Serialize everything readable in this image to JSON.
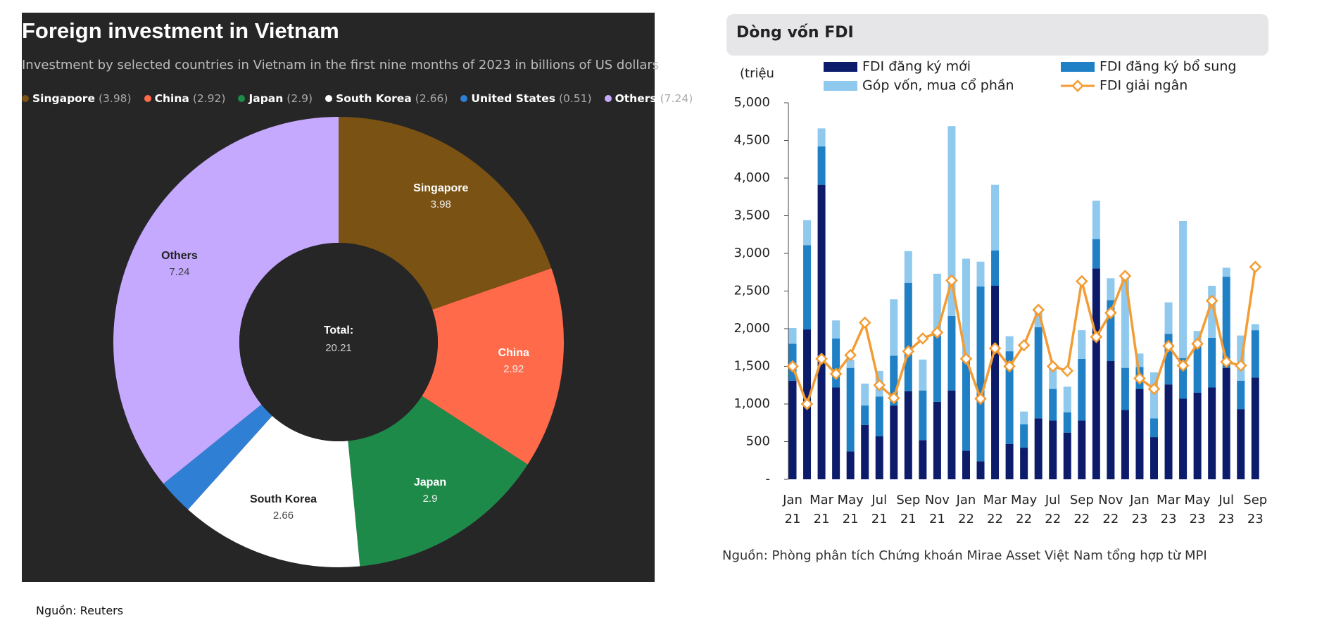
{
  "chart_data": [
    {
      "type": "pie",
      "title": "Foreign investment in Vietnam",
      "subtitle": "Investment by selected countries in Vietnam in the first nine months of 2023 in billions of US dollars",
      "categories": [
        "Singapore",
        "China",
        "Japan",
        "South Korea",
        "United States",
        "Others"
      ],
      "values": [
        3.98,
        2.92,
        2.9,
        2.66,
        0.51,
        7.24
      ],
      "colors": [
        "#7a5213",
        "#ff6b4a",
        "#1e8a4a",
        "#ffffff",
        "#2f7fd4",
        "#c5a9ff"
      ],
      "center_label": "Total:",
      "center_value": 20.21,
      "source": "Nguồn: Reuters"
    },
    {
      "type": "bar",
      "stacked": true,
      "title": "Dòng vốn FDI",
      "y_label": "(triệu",
      "categories": [
        "Jan 21",
        null,
        "Mar 21",
        null,
        "May 21",
        null,
        "Jul 21",
        null,
        "Sep 21",
        null,
        "Nov 21",
        null,
        "Jan 22",
        null,
        "Mar 22",
        null,
        "May 22",
        null,
        "Jul 22",
        null,
        "Sep 22",
        null,
        "Nov 22",
        null,
        "Jan 23",
        null,
        "Mar 23",
        null,
        "May 23",
        null,
        "Jul 23",
        null,
        "Sep 23"
      ],
      "series": [
        {
          "name": "FDI đăng ký mới",
          "color": "#0c1c6b",
          "values": [
            1310,
            1990,
            3910,
            1220,
            370,
            720,
            570,
            980,
            1170,
            520,
            1030,
            1180,
            380,
            240,
            2570,
            470,
            420,
            810,
            780,
            620,
            780,
            2800,
            1570,
            920,
            1200,
            560,
            1260,
            1070,
            1150,
            1220,
            1480,
            930,
            1350
          ]
        },
        {
          "name": "FDI đăng ký bổ sung",
          "color": "#1f80c6",
          "values": [
            490,
            1120,
            510,
            650,
            1110,
            260,
            530,
            660,
            1440,
            660,
            900,
            990,
            1190,
            2320,
            470,
            1230,
            310,
            1210,
            420,
            270,
            820,
            390,
            810,
            560,
            290,
            250,
            670,
            540,
            660,
            660,
            1210,
            380,
            630
          ]
        },
        {
          "name": "Góp vốn, mua cổ phần",
          "color": "#8fc9ee",
          "values": [
            210,
            330,
            240,
            240,
            110,
            290,
            340,
            750,
            420,
            410,
            800,
            2520,
            1360,
            330,
            870,
            200,
            170,
            270,
            330,
            340,
            380,
            510,
            290,
            1230,
            180,
            610,
            420,
            1820,
            160,
            690,
            120,
            600,
            80
          ]
        },
        {
          "name": "FDI giải ngân",
          "color": "#f39c34",
          "type": "line",
          "values": [
            1500,
            1000,
            1600,
            1400,
            1650,
            2080,
            1250,
            1080,
            1700,
            1870,
            1950,
            2640,
            1600,
            1070,
            1740,
            1500,
            1780,
            2250,
            1500,
            1440,
            2630,
            1890,
            2210,
            2700,
            1340,
            1200,
            1770,
            1510,
            1800,
            2370,
            1560,
            1510,
            2820
          ]
        }
      ],
      "ylim": [
        0,
        5000
      ],
      "yticks": [
        {
          "value": 0,
          "label": "-"
        },
        500,
        {
          "value": 1000,
          "label": "1,000"
        },
        {
          "value": 1500,
          "label": "1,500"
        },
        {
          "value": 2000,
          "label": "2,000"
        },
        {
          "value": 2500,
          "label": "2,500"
        },
        {
          "value": 3000,
          "label": "3,000"
        },
        {
          "value": 3500,
          "label": "3,500"
        },
        {
          "value": 4000,
          "label": "4,000"
        },
        {
          "value": 4500,
          "label": "4,500"
        },
        {
          "value": 5000,
          "label": "5,000"
        }
      ],
      "source": "Nguồn: Phòng phân tích Chứng khoán Mirae Asset Việt Nam tổng hợp từ MPI"
    }
  ]
}
